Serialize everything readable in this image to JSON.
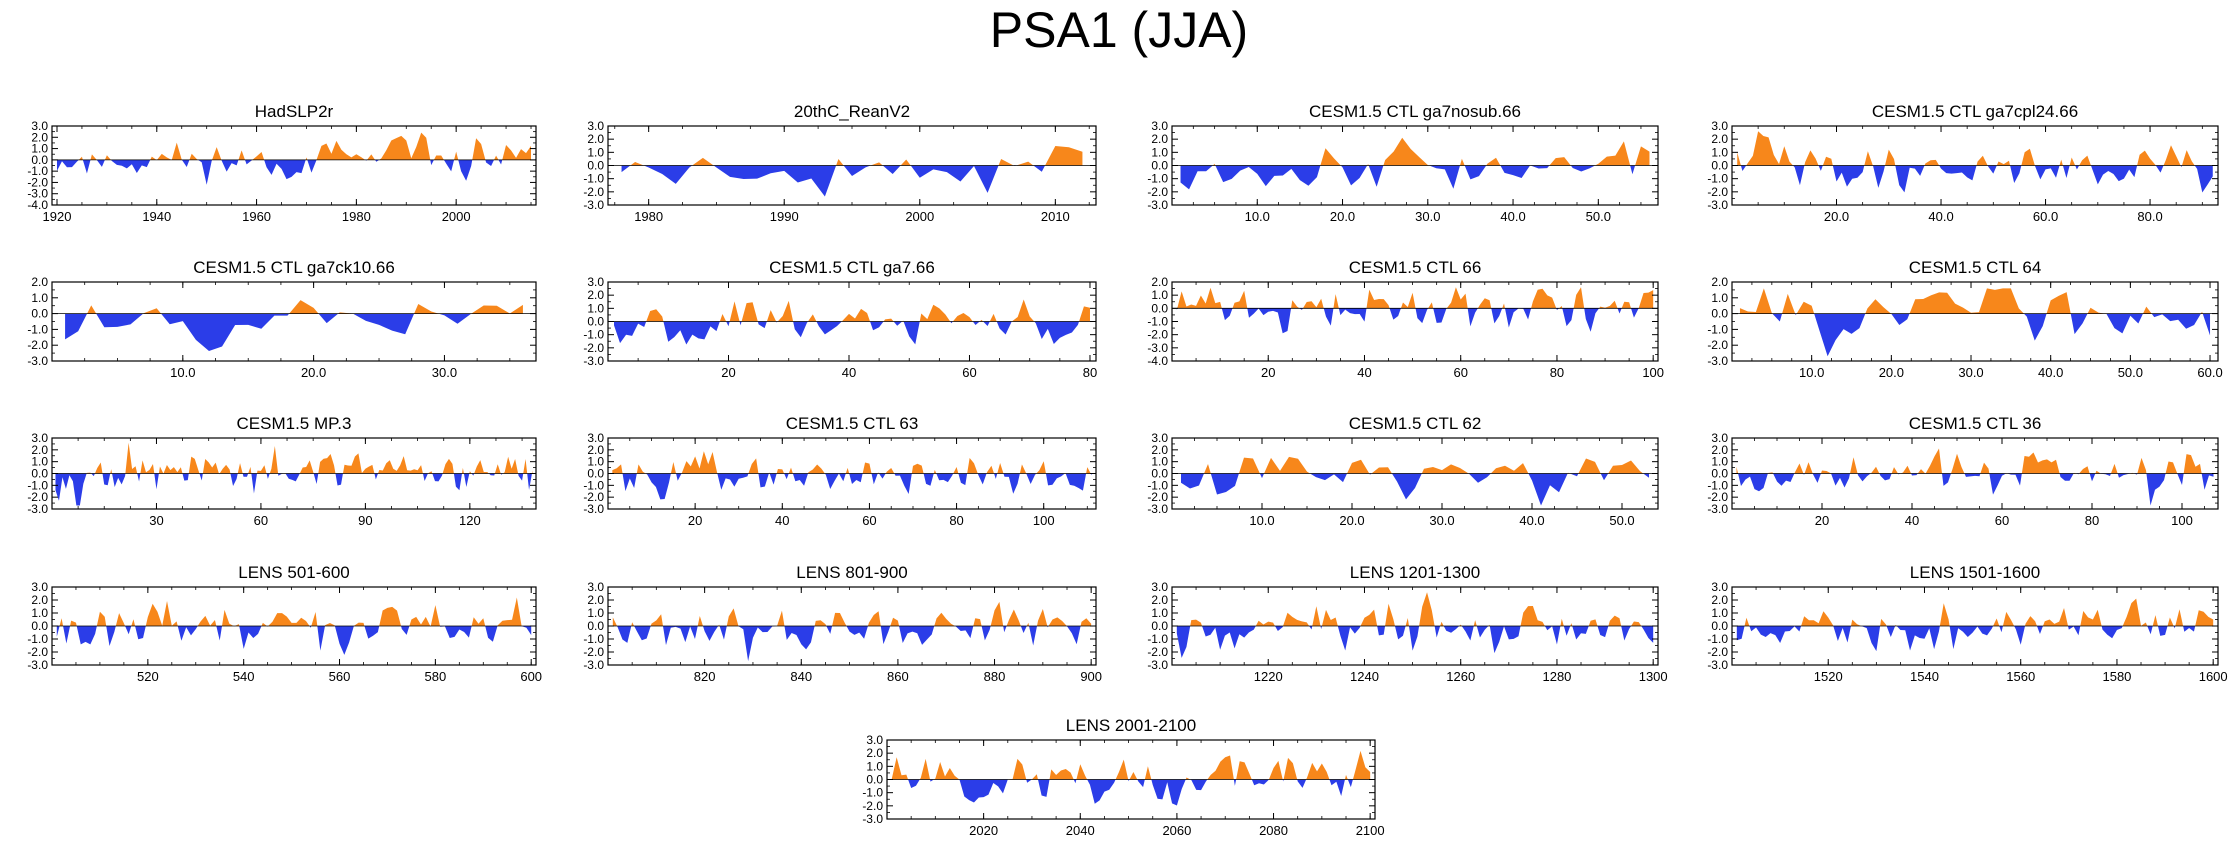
{
  "page_title": "PSA1 (JJA)",
  "colors": {
    "positive": "#F7871B",
    "negative": "#2B3DE8",
    "axis": "#000000"
  },
  "chart_data": [
    {
      "type": "area",
      "title": "HadSLP2r",
      "x_start": 1920,
      "n_points": 96,
      "xlim": [
        1919,
        2016
      ],
      "ylim": [
        -4,
        3
      ],
      "yticks": [
        3,
        2,
        1,
        0,
        -1,
        -2,
        -3,
        -4
      ],
      "ytick_labels": [
        "3.0",
        "2.0",
        "1.0",
        "0.0",
        "-1.0",
        "-2.0",
        "-3.0",
        "-4.0"
      ],
      "xticks": [
        1920,
        1940,
        1960,
        1980,
        2000
      ],
      "xtick_labels": [
        "1920",
        "1940",
        "1960",
        "1980",
        "2000"
      ],
      "seed": 11
    },
    {
      "type": "area",
      "title": "20thC_ReanV2",
      "x_start": 1978,
      "n_points": 35,
      "xlim": [
        1977,
        2013
      ],
      "ylim": [
        -3,
        3
      ],
      "yticks": [
        3,
        2,
        1,
        0,
        -1,
        -2,
        -3
      ],
      "ytick_labels": [
        "3.0",
        "2.0",
        "1.0",
        "0.0",
        "-1.0",
        "-2.0",
        "-3.0"
      ],
      "xticks": [
        1980,
        1990,
        2000,
        2010
      ],
      "xtick_labels": [
        "1980",
        "1990",
        "2000",
        "2010"
      ],
      "seed": 23
    },
    {
      "type": "area",
      "title": "CESM1.5 CTL ga7nosub.66",
      "x_start": 1,
      "n_points": 56,
      "xlim": [
        0,
        57
      ],
      "ylim": [
        -3,
        3
      ],
      "yticks": [
        3,
        2,
        1,
        0,
        -1,
        -2,
        -3
      ],
      "ytick_labels": [
        "3.0",
        "2.0",
        "1.0",
        "0.0",
        "-1.0",
        "-2.0",
        "-3.0"
      ],
      "xticks": [
        10,
        20,
        30,
        40,
        50
      ],
      "xtick_labels": [
        "10.0",
        "20.0",
        "30.0",
        "40.0",
        "50.0"
      ],
      "seed": 37
    },
    {
      "type": "area",
      "title": "CESM1.5 CTL ga7cpl24.66",
      "x_start": 1,
      "n_points": 92,
      "xlim": [
        0,
        93
      ],
      "ylim": [
        -3,
        3
      ],
      "yticks": [
        3,
        2,
        1,
        0,
        -1,
        -2,
        -3
      ],
      "ytick_labels": [
        "3.0",
        "2.0",
        "1.0",
        "0.0",
        "-1.0",
        "-2.0",
        "-3.0"
      ],
      "xticks": [
        20,
        40,
        60,
        80
      ],
      "xtick_labels": [
        "20.0",
        "40.0",
        "60.0",
        "80.0"
      ],
      "seed": 41
    },
    {
      "type": "area",
      "title": "CESM1.5 CTL ga7ck10.66",
      "x_start": 1,
      "n_points": 36,
      "xlim": [
        0,
        37
      ],
      "ylim": [
        -3,
        2
      ],
      "yticks": [
        2,
        1,
        0,
        -1,
        -2,
        -3
      ],
      "ytick_labels": [
        "2.0",
        "1.0",
        "0.0",
        "-1.0",
        "-2.0",
        "-3.0"
      ],
      "xticks": [
        10,
        20,
        30
      ],
      "xtick_labels": [
        "10.0",
        "20.0",
        "30.0"
      ],
      "seed": 53
    },
    {
      "type": "area",
      "title": "CESM1.5 CTL ga7.66",
      "x_start": 1,
      "n_points": 80,
      "xlim": [
        0,
        81
      ],
      "ylim": [
        -3,
        3
      ],
      "yticks": [
        3,
        2,
        1,
        0,
        -1,
        -2,
        -3
      ],
      "ytick_labels": [
        "3.0",
        "2.0",
        "1.0",
        "0.0",
        "-1.0",
        "-2.0",
        "-3.0"
      ],
      "xticks": [
        20,
        40,
        60,
        80
      ],
      "xtick_labels": [
        "20",
        "40",
        "60",
        "80"
      ],
      "seed": 67
    },
    {
      "type": "area",
      "title": "CESM1.5 CTL 66",
      "x_start": 1,
      "n_points": 100,
      "xlim": [
        0,
        101
      ],
      "ylim": [
        -4,
        2
      ],
      "yticks": [
        2,
        1,
        0,
        -1,
        -2,
        -3,
        -4
      ],
      "ytick_labels": [
        "2.0",
        "1.0",
        "0.0",
        "-1.0",
        "-2.0",
        "-3.0",
        "-4.0"
      ],
      "xticks": [
        20,
        40,
        60,
        80,
        100
      ],
      "xtick_labels": [
        "20",
        "40",
        "60",
        "80",
        "100"
      ],
      "seed": 71
    },
    {
      "type": "area",
      "title": "CESM1.5 CTL 64",
      "x_start": 1,
      "n_points": 60,
      "xlim": [
        0,
        61
      ],
      "ylim": [
        -3,
        2
      ],
      "yticks": [
        2,
        1,
        0,
        -1,
        -2,
        -3
      ],
      "ytick_labels": [
        "2.0",
        "1.0",
        "0.0",
        "-1.0",
        "-2.0",
        "-3.0"
      ],
      "xticks": [
        10,
        20,
        30,
        40,
        50,
        60
      ],
      "xtick_labels": [
        "10.0",
        "20.0",
        "30.0",
        "40.0",
        "50.0",
        "60.0"
      ],
      "seed": 83
    },
    {
      "type": "area",
      "title": "CESM1.5 MP.3",
      "x_start": 1,
      "n_points": 138,
      "xlim": [
        0,
        139
      ],
      "ylim": [
        -3,
        3
      ],
      "yticks": [
        3,
        2,
        1,
        0,
        -1,
        -2,
        -3
      ],
      "ytick_labels": [
        "3.0",
        "2.0",
        "1.0",
        "0.0",
        "-1.0",
        "-2.0",
        "-3.0"
      ],
      "xticks": [
        30,
        60,
        90,
        120
      ],
      "xtick_labels": [
        "30",
        "60",
        "90",
        "120"
      ],
      "seed": 97
    },
    {
      "type": "area",
      "title": "CESM1.5 CTL 63",
      "x_start": 1,
      "n_points": 111,
      "xlim": [
        0,
        112
      ],
      "ylim": [
        -3,
        3
      ],
      "yticks": [
        3,
        2,
        1,
        0,
        -1,
        -2,
        -3
      ],
      "ytick_labels": [
        "3.0",
        "2.0",
        "1.0",
        "0.0",
        "-1.0",
        "-2.0",
        "-3.0"
      ],
      "xticks": [
        20,
        40,
        60,
        80,
        100
      ],
      "xtick_labels": [
        "20",
        "40",
        "60",
        "80",
        "100"
      ],
      "seed": 101
    },
    {
      "type": "area",
      "title": "CESM1.5 CTL 62",
      "x_start": 1,
      "n_points": 53,
      "xlim": [
        0,
        54
      ],
      "ylim": [
        -3,
        3
      ],
      "yticks": [
        3,
        2,
        1,
        0,
        -1,
        -2,
        -3
      ],
      "ytick_labels": [
        "3.0",
        "2.0",
        "1.0",
        "0.0",
        "-1.0",
        "-2.0",
        "-3.0"
      ],
      "xticks": [
        10,
        20,
        30,
        40,
        50
      ],
      "xtick_labels": [
        "10.0",
        "20.0",
        "30.0",
        "40.0",
        "50.0"
      ],
      "seed": 113
    },
    {
      "type": "area",
      "title": "CESM1.5 CTL 36",
      "x_start": 1,
      "n_points": 107,
      "xlim": [
        0,
        108
      ],
      "ylim": [
        -3,
        3
      ],
      "yticks": [
        3,
        2,
        1,
        0,
        -1,
        -2,
        -3
      ],
      "ytick_labels": [
        "3.0",
        "2.0",
        "1.0",
        "0.0",
        "-1.0",
        "-2.0",
        "-3.0"
      ],
      "xticks": [
        20,
        40,
        60,
        80,
        100
      ],
      "xtick_labels": [
        "20",
        "40",
        "60",
        "80",
        "100"
      ],
      "seed": 127
    },
    {
      "type": "area",
      "title": "LENS 501-600",
      "x_start": 501,
      "n_points": 100,
      "xlim": [
        500,
        601
      ],
      "ylim": [
        -3,
        3
      ],
      "yticks": [
        3,
        2,
        1,
        0,
        -1,
        -2,
        -3
      ],
      "ytick_labels": [
        "3.0",
        "2.0",
        "1.0",
        "0.0",
        "-1.0",
        "-2.0",
        "-3.0"
      ],
      "xticks": [
        520,
        540,
        560,
        580,
        600
      ],
      "xtick_labels": [
        "520",
        "540",
        "560",
        "580",
        "600"
      ],
      "seed": 131
    },
    {
      "type": "area",
      "title": "LENS 801-900",
      "x_start": 801,
      "n_points": 100,
      "xlim": [
        800,
        901
      ],
      "ylim": [
        -3,
        3
      ],
      "yticks": [
        3,
        2,
        1,
        0,
        -1,
        -2,
        -3
      ],
      "ytick_labels": [
        "3.0",
        "2.0",
        "1.0",
        "0.0",
        "-1.0",
        "-2.0",
        "-3.0"
      ],
      "xticks": [
        820,
        840,
        860,
        880,
        900
      ],
      "xtick_labels": [
        "820",
        "840",
        "860",
        "880",
        "900"
      ],
      "seed": 149
    },
    {
      "type": "area",
      "title": "LENS 1201-1300",
      "x_start": 1201,
      "n_points": 100,
      "xlim": [
        1200,
        1301
      ],
      "ylim": [
        -3,
        3
      ],
      "yticks": [
        3,
        2,
        1,
        0,
        -1,
        -2,
        -3
      ],
      "ytick_labels": [
        "3.0",
        "2.0",
        "1.0",
        "0.0",
        "-1.0",
        "-2.0",
        "-3.0"
      ],
      "xticks": [
        1220,
        1240,
        1260,
        1280,
        1300
      ],
      "xtick_labels": [
        "1220",
        "1240",
        "1260",
        "1280",
        "1300"
      ],
      "seed": 157
    },
    {
      "type": "area",
      "title": "LENS 1501-1600",
      "x_start": 1501,
      "n_points": 100,
      "xlim": [
        1500,
        1601
      ],
      "ylim": [
        -3,
        3
      ],
      "yticks": [
        3,
        2,
        1,
        0,
        -1,
        -2,
        -3
      ],
      "ytick_labels": [
        "3.0",
        "2.0",
        "1.0",
        "0.0",
        "-1.0",
        "-2.0",
        "-3.0"
      ],
      "xticks": [
        1520,
        1540,
        1560,
        1580,
        1600
      ],
      "xtick_labels": [
        "1520",
        "1540",
        "1560",
        "1580",
        "1600"
      ],
      "seed": 163
    },
    {
      "type": "area",
      "title": "LENS 2001-2100",
      "x_start": 2001,
      "n_points": 100,
      "xlim": [
        2000,
        2101
      ],
      "ylim": [
        -3,
        3
      ],
      "yticks": [
        3,
        2,
        1,
        0,
        -1,
        -2,
        -3
      ],
      "ytick_labels": [
        "3.0",
        "2.0",
        "1.0",
        "0.0",
        "-1.0",
        "-2.0",
        "-3.0"
      ],
      "xticks": [
        2020,
        2040,
        2060,
        2080,
        2100
      ],
      "xtick_labels": [
        "2020",
        "2040",
        "2060",
        "2080",
        "2100"
      ],
      "seed": 173
    }
  ]
}
